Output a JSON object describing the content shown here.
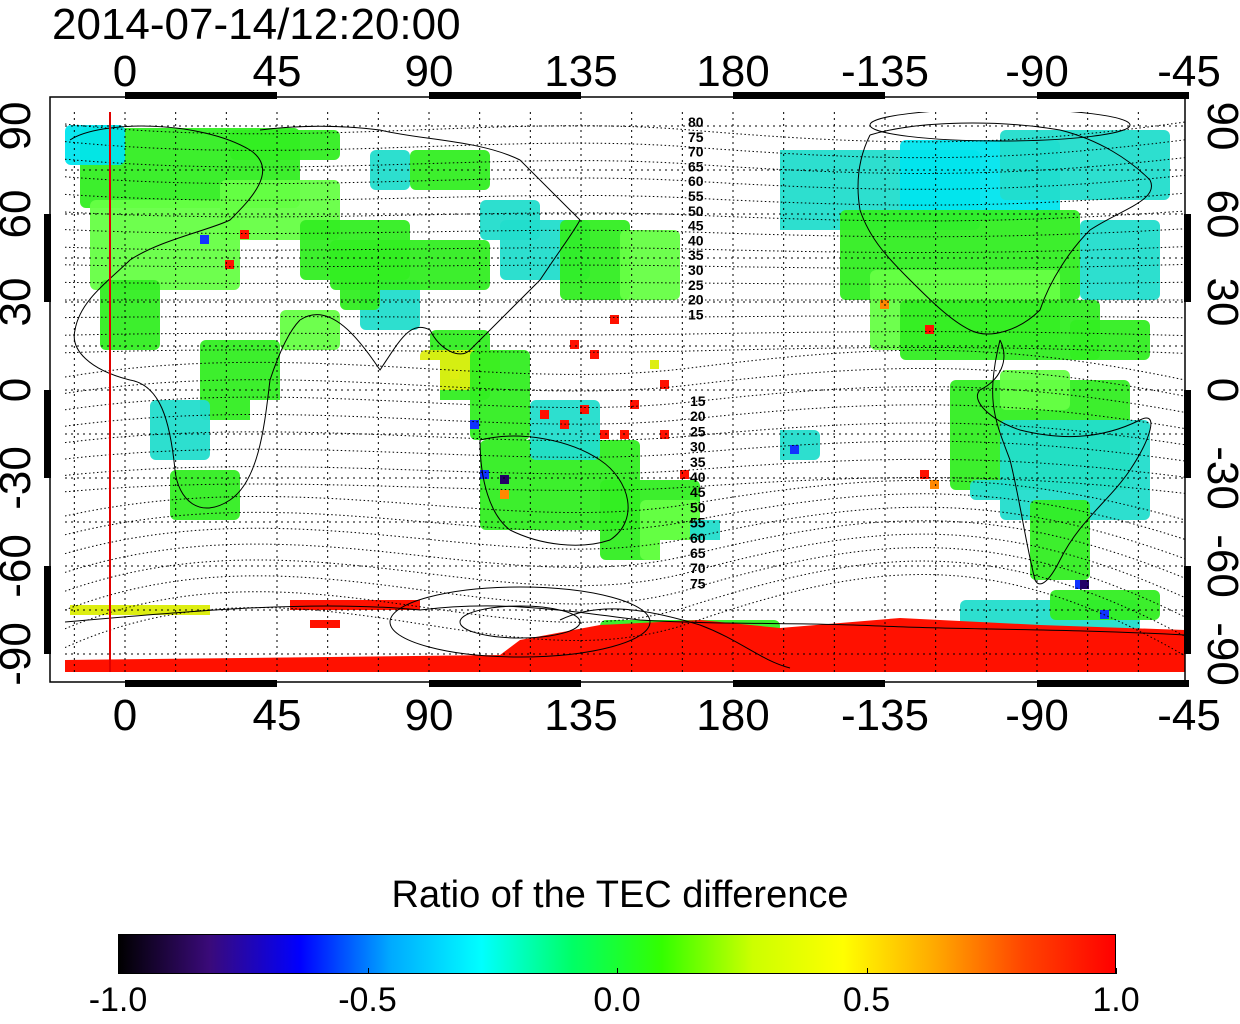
{
  "title": "2014-07-14/12:20:00",
  "map": {
    "lon_ticks_top": [
      "0",
      "45",
      "90",
      "135",
      "180",
      "-135",
      "-90",
      "-45"
    ],
    "lon_ticks_bottom": [
      "0",
      "45",
      "90",
      "135",
      "180",
      "-135",
      "-90",
      "-45"
    ],
    "lat_ticks_left": [
      "90",
      "60",
      "30",
      "0",
      "-30",
      "-60",
      "-90"
    ],
    "lat_ticks_right": [
      "90",
      "60",
      "30",
      "0",
      "-30",
      "-60",
      "-90"
    ],
    "contour_labels_north": [
      "80",
      "75",
      "70",
      "65",
      "60",
      "55",
      "50",
      "45",
      "40",
      "35",
      "30",
      "25",
      "20",
      "15"
    ],
    "contour_labels_south": [
      "15",
      "20",
      "25",
      "30",
      "35",
      "40",
      "45",
      "50",
      "55",
      "60",
      "65",
      "70",
      "75"
    ],
    "marker_line_color": "#e00000"
  },
  "colorbar": {
    "title": "Ratio of the TEC difference",
    "ticks": [
      "-1.0",
      "-0.5",
      "0.0",
      "0.5",
      "1.0"
    ],
    "range": [
      -1.0,
      1.0
    ],
    "colors": [
      "#000000",
      "#3a0a7a",
      "#0000ff",
      "#00aaff",
      "#00ffff",
      "#00ff66",
      "#33ff00",
      "#ccff00",
      "#ffff00",
      "#ffaa00",
      "#ff4400",
      "#ff0000"
    ]
  }
}
